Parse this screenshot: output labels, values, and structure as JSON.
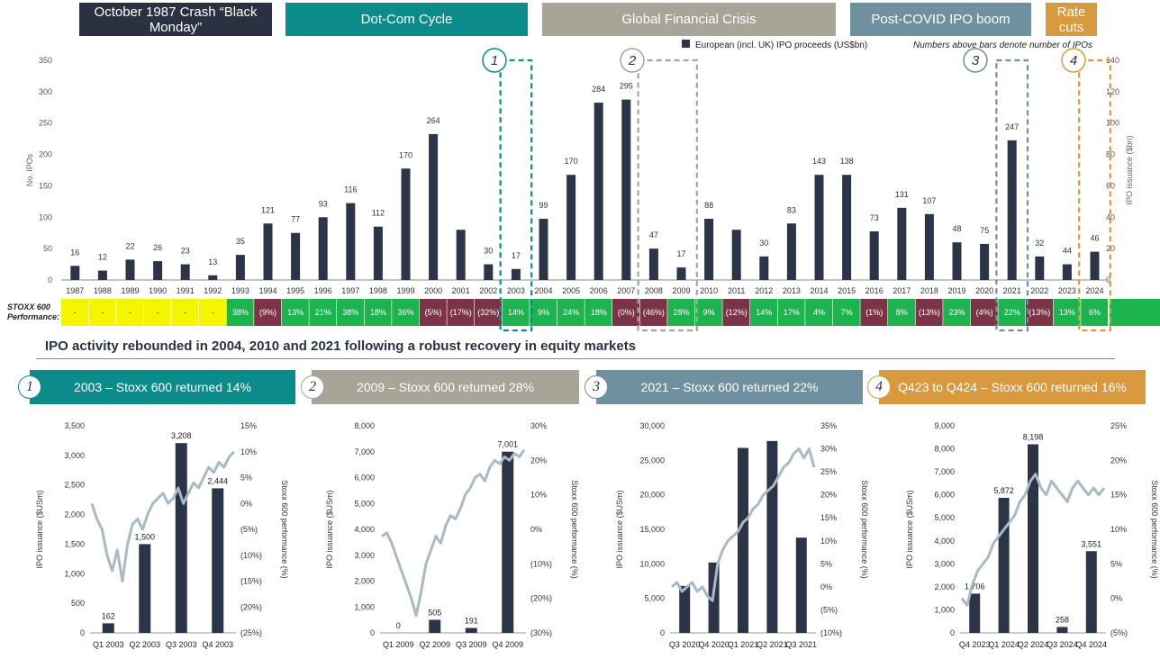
{
  "colors": {
    "bar": "#2c3547",
    "line": "#a8bac3",
    "teal": "#0b8c8a",
    "grey": "#a7a597",
    "steel": "#6f919f",
    "orange": "#d99a3f",
    "navy": "#2a3140",
    "pos": "#1db34e",
    "neg": "#7b3447",
    "yellow": "#f5f500"
  },
  "banners": {
    "black_monday": "October 1987 Crash “Black Monday”",
    "dotcom": "Dot-Com Cycle",
    "gfc": "Global Financial Crisis",
    "covid": "Post-COVID IPO boom",
    "rate": "Rate cuts"
  },
  "headline": "IPO activity rebounded in 2004, 2010 and 2021 following a robust recovery in equity markets",
  "main_chart": {
    "legend": "European (incl. UK) IPO proceeds (US$bn)",
    "note": "Numbers above bars denote number of IPOs",
    "stoxx_label": "STOXX 600 Performance:",
    "callouts": [
      "1",
      "2",
      "3",
      "4"
    ]
  },
  "chart_data": [
    {
      "type": "bar",
      "ylabel_left": "No. IPOs",
      "ylabel_right": "IPO issuance ($bn)",
      "ylim_left": [
        0,
        350
      ],
      "ylim_right": [
        0,
        140
      ],
      "left_ticks": [
        "0",
        "50",
        "100",
        "150",
        "200",
        "250",
        "300",
        "350"
      ],
      "right_ticks": [
        "0",
        "20",
        "40",
        "60",
        "80",
        "100",
        "120",
        "140"
      ],
      "categories": [
        "1987",
        "1988",
        "1989",
        "1990",
        "1991",
        "1992",
        "1993",
        "1994",
        "1995",
        "1996",
        "1997",
        "1998",
        "1999",
        "2000",
        "2001",
        "2002",
        "2003",
        "2004",
        "2005",
        "2006",
        "2007",
        "2008",
        "2009",
        "2010",
        "2011",
        "2012",
        "2013",
        "2014",
        "2015",
        "2016",
        "2017",
        "2018",
        "2019",
        "2020",
        "2021",
        "2022",
        "2023",
        "2024"
      ],
      "proceeds_bn": [
        9,
        6,
        13,
        12,
        10,
        3,
        16,
        36,
        30,
        40,
        49,
        34,
        71,
        93,
        32,
        10,
        7,
        39,
        67,
        113,
        115,
        20,
        8,
        39,
        32,
        15,
        36,
        67,
        67,
        31,
        46,
        42,
        24,
        23,
        89,
        15,
        10,
        18
      ],
      "ipo_counts": [
        "16",
        "12",
        "22",
        "26",
        "23",
        "13",
        "35",
        "121",
        "77",
        "93",
        "116",
        "112",
        "170",
        "264",
        "",
        "30",
        "17",
        "99",
        "170",
        "284",
        "295",
        "47",
        "17",
        "88",
        "",
        "30",
        "83",
        "143",
        "138",
        "73",
        "131",
        "107",
        "48",
        "75",
        "247",
        "32",
        "44",
        "46"
      ],
      "stoxx_perf": [
        "-",
        "-",
        "-",
        "-",
        "-",
        "-",
        "38%",
        "(9%)",
        "13%",
        "21%",
        "38%",
        "18%",
        "36%",
        "(5%)",
        "(17%)",
        "(32%)",
        "14%",
        "9%",
        "24%",
        "18%",
        "(0%)",
        "(46%)",
        "28%",
        "9%",
        "(12%)",
        "14%",
        "17%",
        "4%",
        "7%",
        "(1%)",
        "8%",
        "(13%)",
        "23%",
        "(4%)",
        "22%",
        "(13%)",
        "13%",
        "6%"
      ]
    },
    {
      "type": "bar",
      "title": "2003 – Stoxx 600 returned 14%",
      "ylabel_left": "IPO issuance ($USm)",
      "ylabel_right": "Stoxx 600 performance (%)",
      "ylim_left": [
        0,
        3500
      ],
      "ylim_right": [
        -25,
        15
      ],
      "left_ticks": [
        "0",
        "500",
        "1,000",
        "1,500",
        "2,000",
        "2,500",
        "3,000",
        "3,500"
      ],
      "right_ticks": [
        "(25%)",
        "(20%)",
        "(15%)",
        "(10%)",
        "(5%)",
        "0%",
        "5%",
        "10%",
        "15%"
      ],
      "categories": [
        "Q1 2003",
        "Q2 2003",
        "Q3 2003",
        "Q4 2003"
      ],
      "values": [
        162,
        1500,
        3208,
        2444
      ],
      "labels": [
        "162",
        "1,500",
        "3,208",
        "2,444"
      ],
      "line_pct": [
        0,
        -3,
        -5,
        -10,
        -13,
        -9,
        -15,
        -8,
        -4,
        -3,
        -5,
        -2,
        0,
        1,
        2,
        0,
        1,
        3,
        0,
        2,
        4,
        3,
        5,
        7,
        6,
        8,
        7,
        9,
        10
      ]
    },
    {
      "type": "bar",
      "title": "2009 – Stoxx 600 returned 28%",
      "ylabel_left": "IPO issuance ($USm)",
      "ylabel_right": "Stoxx 600 performance (%)",
      "ylim_left": [
        0,
        8000
      ],
      "ylim_right": [
        -30,
        30
      ],
      "left_ticks": [
        "0",
        "1,000",
        "2,000",
        "3,000",
        "4,000",
        "5,000",
        "6,000",
        "7,000",
        "8,000"
      ],
      "right_ticks": [
        "(30%)",
        "(20%)",
        "(10%)",
        "0%",
        "10%",
        "20%",
        "30%"
      ],
      "categories": [
        "Q1 2009",
        "Q2 2009",
        "Q3 2009",
        "Q4 2009"
      ],
      "values": [
        0,
        505,
        191,
        7001
      ],
      "labels": [
        "0",
        "505",
        "191",
        "7,001"
      ],
      "line_pct": [
        -2,
        -1,
        -4,
        -8,
        -12,
        -16,
        -20,
        -25,
        -18,
        -10,
        -6,
        -2,
        -4,
        1,
        4,
        3,
        6,
        10,
        12,
        15,
        16,
        14,
        18,
        20,
        19,
        21,
        20,
        22,
        21,
        23
      ]
    },
    {
      "type": "bar",
      "title": "2021 – Stoxx 600 returned 22%",
      "ylabel_left": "IPO issuance ($USm)",
      "ylabel_right": "Stoxx 600 performance (%)",
      "ylim_left": [
        0,
        30000
      ],
      "ylim_right": [
        -10,
        35
      ],
      "left_ticks": [
        "0",
        "5,000",
        "10,000",
        "15,000",
        "20,000",
        "25,000",
        "30,000"
      ],
      "right_ticks": [
        "(10%)",
        "(5%)",
        "0%",
        "5%",
        "10%",
        "15%",
        "20%",
        "25%",
        "30%",
        "35%"
      ],
      "categories": [
        "Q3 2020",
        "Q4 2020",
        "Q1 2021",
        "Q2 2021",
        "Q3 2021"
      ],
      "values": [
        6800,
        10200,
        26800,
        27800,
        13800
      ],
      "labels": [],
      "line_pct": [
        0,
        1,
        -1,
        0,
        1,
        -1,
        0,
        -2,
        -3,
        5,
        8,
        10,
        11,
        12,
        14,
        15,
        17,
        18,
        20,
        21,
        22,
        24,
        26,
        27,
        29,
        30,
        28,
        30,
        26
      ]
    },
    {
      "type": "bar",
      "title": "Q423 to Q424 – Stoxx 600 returned 16%",
      "ylabel_left": "IPO issuance ($USm)",
      "ylabel_right": "Stoxx 600 performance (%)",
      "ylim_left": [
        0,
        9000
      ],
      "ylim_right": [
        -5,
        25
      ],
      "left_ticks": [
        "0",
        "1,000",
        "2,000",
        "3,000",
        "4,000",
        "5,000",
        "6,000",
        "7,000",
        "8,000",
        "9,000"
      ],
      "right_ticks": [
        "(5%)",
        "0%",
        "5%",
        "10%",
        "15%",
        "20%",
        "25%"
      ],
      "categories": [
        "Q4 2023",
        "Q1 2024",
        "Q2 2024",
        "Q3 2024",
        "Q4 2024"
      ],
      "values": [
        1706,
        5872,
        8198,
        258,
        3551
      ],
      "labels": [
        "1,706",
        "5,872",
        "8,198",
        "258",
        "3,551"
      ],
      "line_pct": [
        0,
        -1,
        2,
        4,
        5,
        6,
        8,
        9,
        10,
        11,
        12,
        14,
        15,
        17,
        18,
        16,
        15,
        17,
        16,
        15,
        14,
        16,
        17,
        16,
        15,
        16,
        15,
        16
      ]
    }
  ]
}
